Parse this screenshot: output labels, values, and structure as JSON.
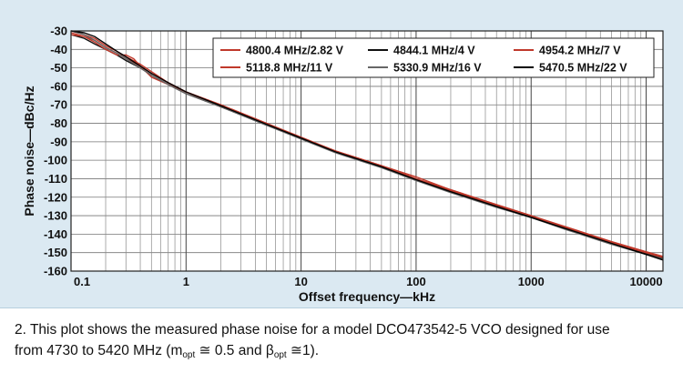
{
  "chart_data": {
    "type": "line",
    "xlabel": "Offset frequency—kHz",
    "ylabel": "Phase noise—dBc/Hz",
    "x_scale": "log",
    "xlim": [
      0.1,
      14000
    ],
    "ylim": [
      -160,
      -30
    ],
    "x_ticks": [
      0.1,
      1,
      10,
      100,
      1000,
      10000
    ],
    "x_tick_labels": [
      "0.1",
      "1",
      "10",
      "100",
      "1000",
      "10000"
    ],
    "y_ticks": [
      -30,
      -40,
      -50,
      -60,
      -70,
      -80,
      -90,
      -100,
      -110,
      -120,
      -130,
      -140,
      -150,
      -160
    ],
    "y_tick_labels": [
      "-30",
      "-40",
      "-50",
      "-60",
      "-70",
      "-80",
      "-90",
      "-100",
      "-110",
      "-120",
      "-130",
      "-140",
      "-150",
      "-160"
    ],
    "grid": true,
    "legend_position": "top-right",
    "series": [
      {
        "name": "4800.4 MHz/2.82 V",
        "color": "#c0392b",
        "x": [
          0.1,
          0.13,
          0.16,
          0.2,
          0.25,
          0.3,
          0.4,
          0.5,
          0.7,
          1,
          2,
          5,
          10,
          20,
          50,
          100,
          200,
          500,
          1000,
          2000,
          5000,
          10000,
          14000
        ],
        "y": [
          -31,
          -33,
          -35,
          -39,
          -42,
          -45,
          -49,
          -53,
          -58,
          -63,
          -70,
          -80,
          -87.5,
          -95,
          -103,
          -110,
          -116,
          -124,
          -130,
          -136,
          -144,
          -149.5,
          -152
        ]
      },
      {
        "name": "4844.1 MHz/4 V",
        "color": "#111111",
        "x": [
          0.1,
          0.13,
          0.16,
          0.2,
          0.25,
          0.3,
          0.4,
          0.5,
          0.7,
          1,
          2,
          5,
          10,
          20,
          50,
          100,
          200,
          500,
          1000,
          2000,
          5000,
          10000,
          14000
        ],
        "y": [
          -32,
          -34,
          -37,
          -40,
          -43,
          -46,
          -50,
          -54,
          -59,
          -64,
          -71,
          -81,
          -88,
          -95.5,
          -103.5,
          -110.5,
          -117,
          -125,
          -130.5,
          -137,
          -145,
          -150.5,
          -153
        ]
      },
      {
        "name": "4954.2 MHz/7 V",
        "color": "#c0392b",
        "x": [
          0.1,
          0.13,
          0.16,
          0.2,
          0.25,
          0.3,
          0.35,
          0.4,
          0.5,
          0.7,
          1,
          2,
          5,
          10,
          20,
          50,
          100,
          200,
          500,
          1000,
          2000,
          5000,
          10000,
          14000
        ],
        "y": [
          -32,
          -33,
          -36,
          -40,
          -43,
          -43,
          -45,
          -49,
          -55,
          -59,
          -63,
          -71,
          -80,
          -88,
          -95,
          -103,
          -109,
          -116,
          -124,
          -130,
          -136.5,
          -144.5,
          -150,
          -152.5
        ]
      },
      {
        "name": "5118.8 MHz/11 V",
        "color": "#c0392b",
        "x": [
          0.1,
          0.13,
          0.16,
          0.2,
          0.25,
          0.3,
          0.4,
          0.5,
          0.7,
          1,
          2,
          5,
          10,
          20,
          50,
          100,
          200,
          500,
          1000,
          2000,
          5000,
          10000,
          14000
        ],
        "y": [
          -30,
          -32,
          -34,
          -38,
          -41,
          -44,
          -48,
          -52,
          -58,
          -63,
          -70,
          -80,
          -88,
          -95,
          -103,
          -110,
          -116.5,
          -124.5,
          -130,
          -136.5,
          -144.5,
          -150,
          -152.5
        ]
      },
      {
        "name": "5330.9 MHz/16 V",
        "color": "#666666",
        "x": [
          0.1,
          0.13,
          0.16,
          0.2,
          0.25,
          0.3,
          0.4,
          0.5,
          0.7,
          1,
          2,
          5,
          10,
          20,
          50,
          100,
          200,
          500,
          1000,
          2000,
          5000,
          10000,
          14000
        ],
        "y": [
          -30,
          -32,
          -35,
          -39,
          -42,
          -45,
          -50,
          -54,
          -59,
          -64,
          -71,
          -81,
          -88.5,
          -96,
          -104,
          -111,
          -117.5,
          -125.5,
          -131,
          -137.5,
          -145.5,
          -151,
          -153.5
        ]
      },
      {
        "name": "5470.5 MHz/22 V",
        "color": "#000000",
        "x": [
          0.1,
          0.13,
          0.16,
          0.2,
          0.25,
          0.3,
          0.4,
          0.5,
          0.7,
          1,
          2,
          5,
          10,
          20,
          50,
          100,
          200,
          500,
          1000,
          2000,
          5000,
          10000,
          14000
        ],
        "y": [
          -30,
          -31,
          -33,
          -37,
          -41,
          -44,
          -49,
          -53,
          -58,
          -63,
          -70.5,
          -80.5,
          -88,
          -95.5,
          -103.5,
          -110.5,
          -117,
          -125,
          -131,
          -137,
          -145,
          -151,
          -154
        ]
      }
    ]
  },
  "caption": {
    "part1": "2. This plot shows the measured phase noise for a model DCO473542-5 VCO designed for use",
    "part2": "from 4730 to 5420 MHz (m",
    "sub1": "opt",
    "part3": " ≅ 0.5 and β",
    "sub2": "opt",
    "part4": " ≅1)."
  }
}
